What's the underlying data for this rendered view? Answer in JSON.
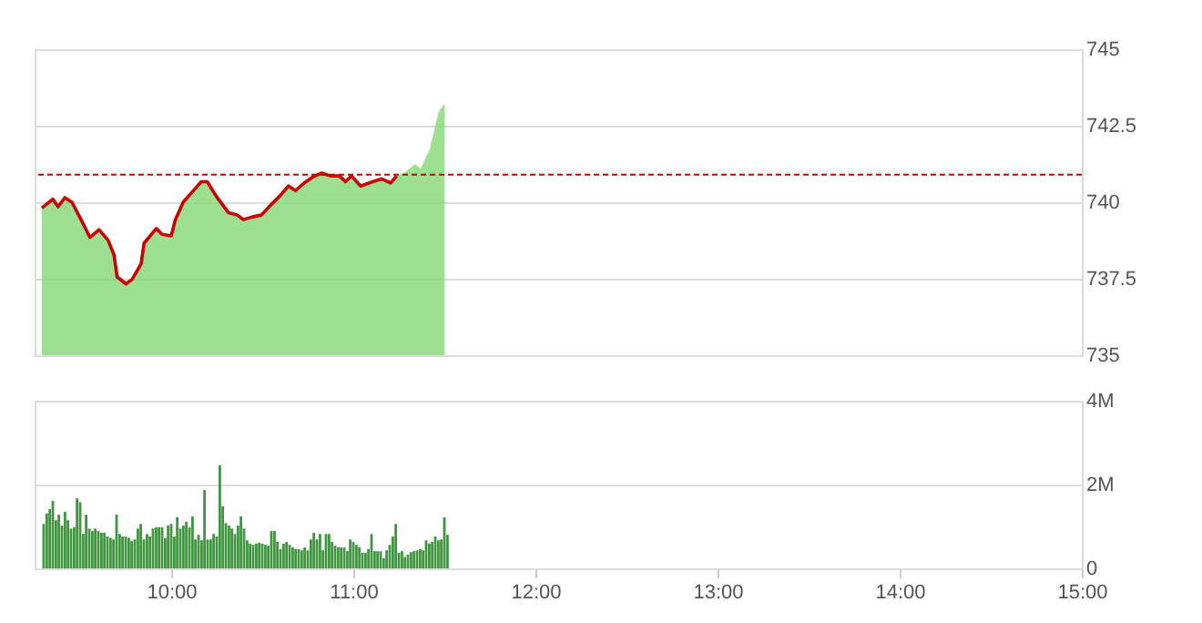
{
  "chart_data": [
    {
      "type": "area",
      "x": [
        9.29,
        9.35,
        9.379,
        9.416,
        9.455,
        9.505,
        9.554,
        9.604,
        9.653,
        9.686,
        9.703,
        9.752,
        9.786,
        9.835,
        9.851,
        9.918,
        9.95,
        10.0,
        10.023,
        10.066,
        10.116,
        10.165,
        10.198,
        10.248,
        10.314,
        10.363,
        10.396,
        10.446,
        10.495,
        10.545,
        10.594,
        10.644,
        10.683,
        10.726,
        10.776,
        10.825,
        10.875,
        10.924,
        10.957,
        10.99,
        11.04,
        11.106,
        11.155,
        11.205,
        11.238,
        11.287,
        11.337,
        11.37,
        11.419,
        11.469,
        11.502
      ],
      "series": [
        {
          "color": "#7ed66e",
          "values": [
            739.81,
            740.1,
            739.85,
            740.15,
            740.0,
            739.43,
            738.85,
            739.1,
            738.76,
            738.28,
            737.56,
            737.33,
            737.48,
            737.99,
            738.66,
            739.14,
            738.95,
            738.9,
            739.43,
            740.0,
            740.34,
            740.67,
            740.67,
            740.19,
            739.66,
            739.58,
            739.43,
            739.52,
            739.58,
            739.9,
            740.19,
            740.53,
            740.38,
            740.61,
            740.82,
            740.95,
            740.86,
            740.86,
            740.67,
            740.86,
            740.53,
            740.67,
            740.76,
            740.63,
            740.86,
            740.99,
            741.24,
            741.1,
            741.72,
            742.96,
            743.24
          ]
        },
        {
          "type": "line",
          "color": "#cc0000",
          "values": [
            739.81,
            740.1,
            739.85,
            740.15,
            740.0,
            739.43,
            738.85,
            739.1,
            738.76,
            738.28,
            737.56,
            737.33,
            737.48,
            737.99,
            738.66,
            739.14,
            738.95,
            738.9,
            739.43,
            740.0,
            740.34,
            740.67,
            740.67,
            740.19,
            739.66,
            739.58,
            739.43,
            739.52,
            739.58,
            739.9,
            740.19,
            740.53,
            740.38,
            740.61,
            740.82,
            740.95,
            740.86,
            740.86,
            740.67,
            740.86,
            740.53,
            740.67,
            740.76,
            740.63,
            740.86,
            null,
            null,
            null,
            null,
            null,
            null
          ]
        }
      ],
      "xlim": [
        9.25,
        15
      ],
      "ylim": [
        735,
        745
      ],
      "yticks": [
        735,
        737.5,
        740,
        742.5,
        745
      ],
      "ref_lines": [
        {
          "axis": "y",
          "value": 740.9,
          "color": "#cc0000",
          "line_style": "dashed"
        }
      ],
      "grid": "y",
      "tick_labels": "y"
    },
    {
      "type": "bar",
      "x": [
        9.3,
        9.317,
        9.333,
        9.35,
        9.367,
        9.383,
        9.4,
        9.417,
        9.433,
        9.45,
        9.467,
        9.483,
        9.5,
        9.517,
        9.533,
        9.55,
        9.567,
        9.583,
        9.6,
        9.617,
        9.633,
        9.65,
        9.667,
        9.683,
        9.7,
        9.717,
        9.733,
        9.75,
        9.767,
        9.783,
        9.8,
        9.817,
        9.833,
        9.85,
        9.867,
        9.883,
        9.9,
        9.917,
        9.933,
        9.95,
        9.967,
        9.983,
        10,
        10.017,
        10.033,
        10.05,
        10.067,
        10.083,
        10.1,
        10.117,
        10.133,
        10.15,
        10.167,
        10.183,
        10.2,
        10.217,
        10.233,
        10.25,
        10.267,
        10.283,
        10.3,
        10.317,
        10.333,
        10.35,
        10.367,
        10.383,
        10.4,
        10.417,
        10.433,
        10.45,
        10.467,
        10.483,
        10.5,
        10.517,
        10.533,
        10.55,
        10.567,
        10.583,
        10.6,
        10.617,
        10.633,
        10.65,
        10.667,
        10.683,
        10.7,
        10.717,
        10.733,
        10.75,
        10.767,
        10.783,
        10.8,
        10.817,
        10.833,
        10.85,
        10.867,
        10.883,
        10.9,
        10.917,
        10.933,
        10.95,
        10.967,
        10.983,
        11,
        11.017,
        11.033,
        11.05,
        11.067,
        11.083,
        11.1,
        11.117,
        11.133,
        11.15,
        11.167,
        11.183,
        11.2,
        11.217,
        11.233,
        11.25,
        11.267,
        11.283,
        11.3,
        11.317,
        11.333,
        11.35,
        11.367,
        11.383,
        11.4,
        11.417,
        11.433,
        11.45,
        11.467,
        11.483,
        11.5,
        11.517
      ],
      "series": [
        {
          "color": "#3f963f",
          "values": [
            1.06,
            1.31,
            1.41,
            1.61,
            1.15,
            1.28,
            1.02,
            1.35,
            1.15,
            0.95,
            0.98,
            1.67,
            1.58,
            0.82,
            1.28,
            0.95,
            0.89,
            0.95,
            0.89,
            0.85,
            0.85,
            0.76,
            0.73,
            0.69,
            1.28,
            0.82,
            0.76,
            0.76,
            0.73,
            0.65,
            0.69,
            0.95,
            1.06,
            0.69,
            0.82,
            0.76,
            0.95,
            0.98,
            0.98,
            0.98,
            0.72,
            1.02,
            1.06,
            0.76,
            1.22,
            0.95,
            1.02,
            1.11,
            0.98,
            1.24,
            0.69,
            0.8,
            0.67,
            1.87,
            0.69,
            0.69,
            0.82,
            0.76,
            2.46,
            1.48,
            1.08,
            1.02,
            0.95,
            0.82,
            1.02,
            1.24,
            0.95,
            0.67,
            0.59,
            0.56,
            0.59,
            0.61,
            0.59,
            0.56,
            0.54,
            0.89,
            0.89,
            0.63,
            0.46,
            0.59,
            0.63,
            0.56,
            0.5,
            0.46,
            0.46,
            0.43,
            0.5,
            0.43,
            0.69,
            0.85,
            0.69,
            0.82,
            0.43,
            0.82,
            0.82,
            0.63,
            0.54,
            0.5,
            0.5,
            0.5,
            0.41,
            0.69,
            0.63,
            0.56,
            0.5,
            0.37,
            0.37,
            0.46,
            0.82,
            0.41,
            0.41,
            0.41,
            0.24,
            0.43,
            0.56,
            0.76,
            1.06,
            0.37,
            0.41,
            0.27,
            0.33,
            0.39,
            0.41,
            0.43,
            0.46,
            0.43,
            0.67,
            0.59,
            0.63,
            0.76,
            0.67,
            0.69,
            1.22,
            0.8
          ]
        }
      ],
      "xlim": [
        9.25,
        15
      ],
      "xticks": [
        {
          "value": 10,
          "label": "10:00"
        },
        {
          "value": 11,
          "label": "11:00"
        },
        {
          "value": 12,
          "label": "12:00"
        },
        {
          "value": 13,
          "label": "13:00"
        },
        {
          "value": 14,
          "label": "14:00"
        },
        {
          "value": 15,
          "label": "15:00"
        }
      ],
      "ylim": [
        0,
        4
      ],
      "yticks": [
        0,
        {
          "value": 2,
          "label": "2M"
        },
        {
          "value": 4,
          "label": "4M"
        }
      ],
      "grid": "y"
    }
  ]
}
